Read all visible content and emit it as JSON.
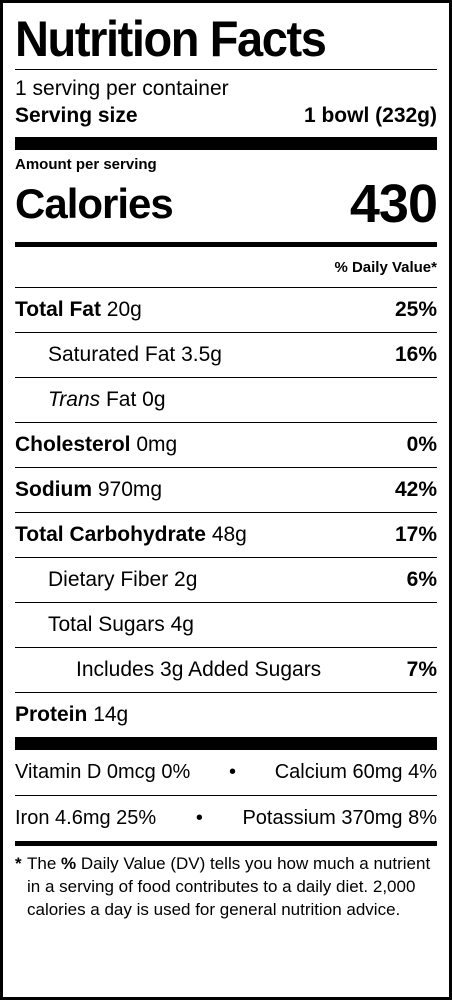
{
  "title": "Nutrition Facts",
  "servings_per_container": "1 serving per container",
  "serving_size_label": "Serving size",
  "serving_size_value": "1 bowl (232g)",
  "amount_per_serving": "Amount per serving",
  "calories_label": "Calories",
  "calories_value": "430",
  "daily_value_header": "% Daily Value*",
  "nutrients": [
    {
      "name": "Total Fat",
      "amount": "20g",
      "dv": "25%"
    },
    {
      "name": "Saturated Fat",
      "amount": "3.5g",
      "dv": "16%"
    },
    {
      "name": "Trans",
      "name_rest": "Fat",
      "amount": "0g",
      "dv": ""
    },
    {
      "name": "Cholesterol",
      "amount": "0mg",
      "dv": "0%"
    },
    {
      "name": "Sodium",
      "amount": "970mg",
      "dv": "42%"
    },
    {
      "name": "Total Carbohydrate",
      "amount": "48g",
      "dv": "17%"
    },
    {
      "name": "Dietary Fiber",
      "amount": "2g",
      "dv": "6%"
    },
    {
      "name": "Total Sugars",
      "amount": "4g",
      "dv": ""
    },
    {
      "name": "Includes 3g Added Sugars",
      "amount": "",
      "dv": "7%"
    },
    {
      "name": "Protein",
      "amount": "14g",
      "dv": ""
    }
  ],
  "vitamins": [
    {
      "left": "Vitamin D 0mcg 0%",
      "right": "Calcium 60mg 4%"
    },
    {
      "left": "Iron 4.6mg 25%",
      "right": "Potassium 370mg 8%"
    }
  ],
  "footnote": {
    "star": "*",
    "part1": "The",
    "bold": "%",
    "part2": "Daily Value (DV) tells you how much a nutrient in a serving of food contributes to a daily diet. 2,000 calories a day is used for general nutrition advice."
  }
}
